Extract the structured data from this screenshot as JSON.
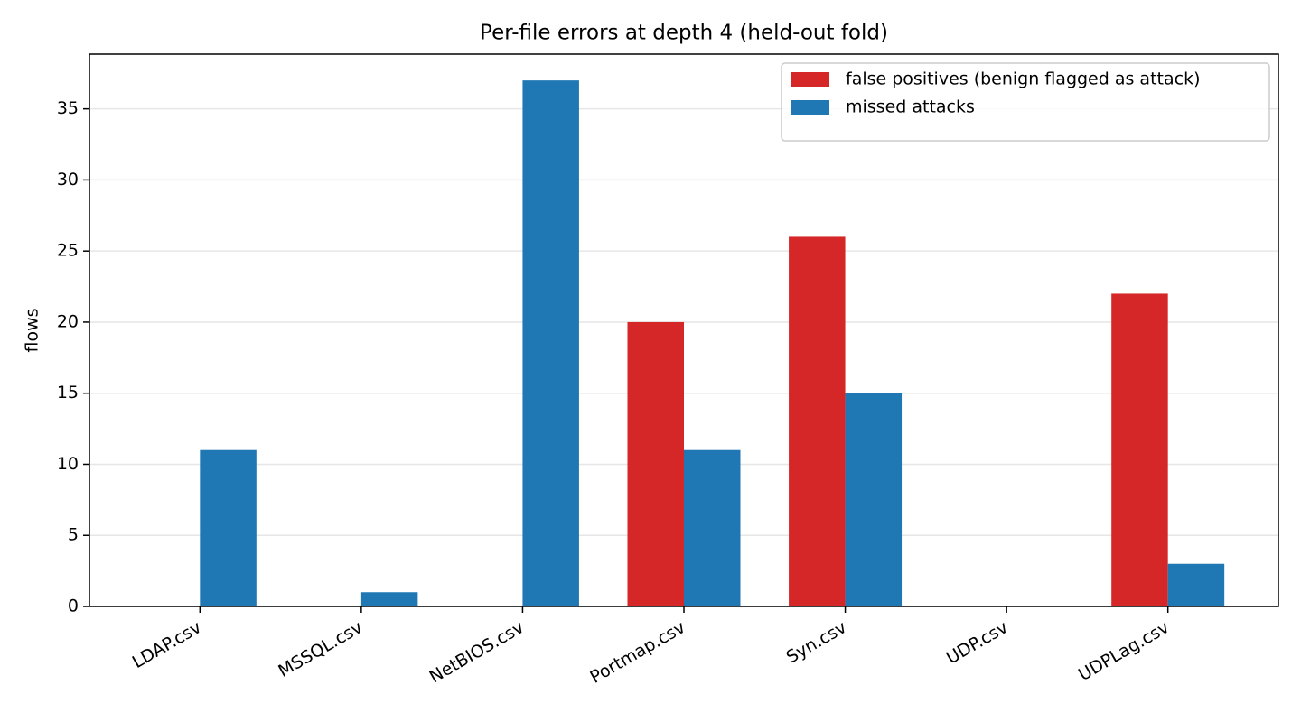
{
  "chart_data": {
    "type": "bar",
    "title": "Per-file errors at depth 4 (held-out fold)",
    "ylabel": "flows",
    "categories": [
      "LDAP.csv",
      "MSSQL.csv",
      "NetBIOS.csv",
      "Portmap.csv",
      "Syn.csv",
      "UDP.csv",
      "UDPLag.csv"
    ],
    "series": [
      {
        "name": "false positives (benign flagged as attack)",
        "color": "#d62728",
        "values": [
          0,
          0,
          0,
          20,
          26,
          0,
          22
        ]
      },
      {
        "name": "missed attacks",
        "color": "#1f77b4",
        "values": [
          11,
          1,
          37,
          11,
          15,
          0,
          3
        ]
      }
    ],
    "ylim": [
      0,
      38.85
    ],
    "yticks": [
      0,
      5,
      10,
      15,
      20,
      25,
      30,
      35
    ],
    "grid": true,
    "legend": "upper right"
  }
}
